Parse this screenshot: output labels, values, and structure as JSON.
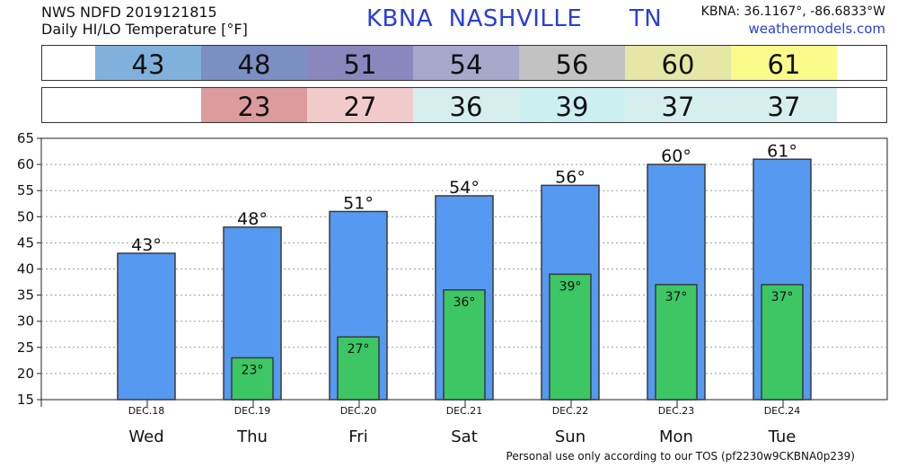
{
  "header": {
    "line1": "NWS NDFD 2019121815",
    "line2": "Daily HI/LO Temperature [°F]",
    "station": "KBNA  NASHVILLE      TN",
    "coords": "KBNA: 36.1167°, -86.6833°W",
    "site": "weathermodels.com"
  },
  "footer": "Personal use only according to our TOS (pf2230w9CKBNA0p239)",
  "colors": {
    "hi_bar": "#5599f0",
    "lo_bar": "#3cc664",
    "hi_cells": [
      "#7fb1dc",
      "#7b8fc4",
      "#8a87bf",
      "#a7a7cc",
      "#c2c2c2",
      "#e6e6a6",
      "#fbfb8c"
    ],
    "lo_cells": [
      "#dc9c9e",
      "#f1caca",
      "#d6eeee",
      "#cceff2",
      "#d6eeee",
      "#d6eeee"
    ]
  },
  "hi_row": [
    "43",
    "48",
    "51",
    "54",
    "56",
    "60",
    "61"
  ],
  "lo_row": [
    "23",
    "27",
    "36",
    "39",
    "37",
    "37"
  ],
  "chart_data": {
    "type": "bar",
    "categories": [
      "Wed",
      "Thu",
      "Fri",
      "Sat",
      "Sun",
      "Mon",
      "Tue"
    ],
    "dates": [
      "DEC.18",
      "DEC.19",
      "DEC.20",
      "DEC.21",
      "DEC.22",
      "DEC.23",
      "DEC.24"
    ],
    "series": [
      {
        "values": [
          43,
          48,
          51,
          54,
          56,
          60,
          61
        ]
      },
      {
        "values": [
          null,
          23,
          27,
          36,
          39,
          37,
          37
        ]
      }
    ],
    "ylim": [
      15,
      65
    ],
    "yticks": [
      15,
      20,
      25,
      30,
      35,
      40,
      45,
      50,
      55,
      60,
      65
    ],
    "grid": true,
    "unit_suffix": "°"
  }
}
